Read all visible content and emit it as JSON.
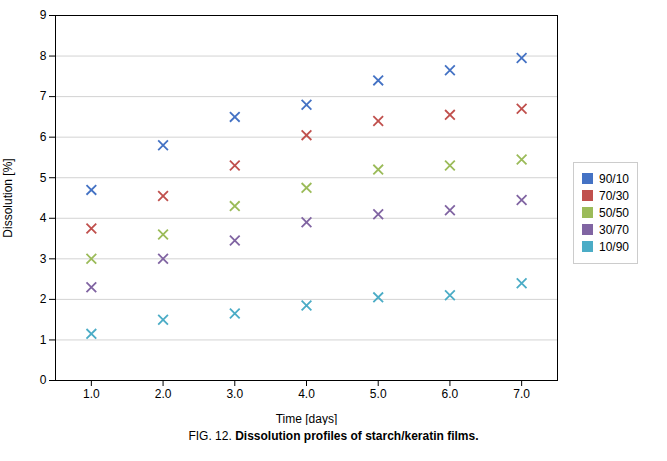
{
  "chart_data": {
    "type": "scatter",
    "title_prefix": "FIG. 12. ",
    "title": "Dissolution profiles of starch/keratin films.",
    "xlabel": "Time [days]",
    "ylabel": "Dissolution [%]",
    "xlim": [
      0.5,
      7.5
    ],
    "ylim": [
      0,
      9
    ],
    "xticks": [
      1,
      2,
      3,
      4,
      5,
      6,
      7
    ],
    "yticks": [
      0,
      1,
      2,
      3,
      4,
      5,
      6,
      7,
      8,
      9
    ],
    "grid": "y",
    "legend": "right",
    "marker": "x",
    "x": [
      1,
      2,
      3,
      4,
      5,
      6,
      7
    ],
    "series": [
      {
        "name": "90/10",
        "color": "#4472C4",
        "values": [
          4.7,
          5.8,
          6.5,
          6.8,
          7.4,
          7.65,
          7.95
        ]
      },
      {
        "name": "70/30",
        "color": "#C0504D",
        "values": [
          3.75,
          4.55,
          5.3,
          6.05,
          6.4,
          6.55,
          6.7
        ]
      },
      {
        "name": "50/50",
        "color": "#9BBB59",
        "values": [
          3.0,
          3.6,
          4.3,
          4.75,
          5.2,
          5.3,
          5.45
        ]
      },
      {
        "name": "30/70",
        "color": "#8064A2",
        "values": [
          2.3,
          3.0,
          3.45,
          3.9,
          4.1,
          4.2,
          4.45
        ]
      },
      {
        "name": "10/90",
        "color": "#4BACC6",
        "values": [
          1.15,
          1.5,
          1.65,
          1.85,
          2.05,
          2.1,
          2.4
        ]
      }
    ]
  }
}
